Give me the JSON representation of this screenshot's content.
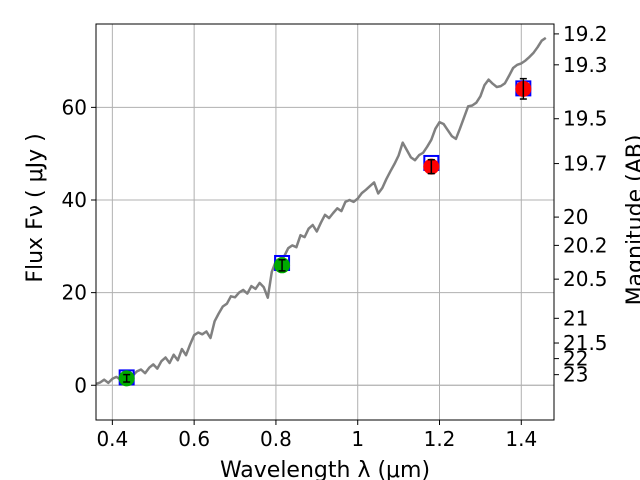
{
  "chart_data": {
    "type": "line",
    "xlabel": "Wavelength  λ (μm)",
    "ylabel": "Flux  Fν  ( μJy )",
    "ylabel_right": "Magnitude (AB)",
    "xlim": [
      0.36,
      1.48
    ],
    "ylim": [
      -7.5,
      78
    ],
    "grid": true,
    "x_ticks": [
      {
        "value": 0.4,
        "label": "0.4"
      },
      {
        "value": 0.6,
        "label": "0.6"
      },
      {
        "value": 0.8,
        "label": "0.8"
      },
      {
        "value": 1.0,
        "label": "1"
      },
      {
        "value": 1.2,
        "label": "1.2"
      },
      {
        "value": 1.4,
        "label": "1.4"
      }
    ],
    "y_ticks": [
      {
        "value": 0,
        "label": "0"
      },
      {
        "value": 20,
        "label": "20"
      },
      {
        "value": 40,
        "label": "40"
      },
      {
        "value": 60,
        "label": "60"
      }
    ],
    "mag_ticks": [
      {
        "value": 19.2,
        "label": "19.2"
      },
      {
        "value": 19.3,
        "label": "19.3"
      },
      {
        "value": 19.5,
        "label": "19.5"
      },
      {
        "value": 19.7,
        "label": "19.7"
      },
      {
        "value": 20,
        "label": "20"
      },
      {
        "value": 20.2,
        "label": "20.2"
      },
      {
        "value": 20.5,
        "label": "20.5"
      },
      {
        "value": 21,
        "label": "21"
      },
      {
        "value": 21.5,
        "label": "21.5"
      },
      {
        "value": 22,
        "label": "22"
      },
      {
        "value": 23,
        "label": "23"
      }
    ],
    "spectrum": {
      "color": "#808080",
      "x": [
        0.36,
        0.37,
        0.38,
        0.39,
        0.4,
        0.41,
        0.42,
        0.43,
        0.44,
        0.45,
        0.46,
        0.47,
        0.48,
        0.49,
        0.5,
        0.51,
        0.52,
        0.53,
        0.54,
        0.55,
        0.56,
        0.57,
        0.58,
        0.59,
        0.6,
        0.61,
        0.62,
        0.63,
        0.64,
        0.65,
        0.66,
        0.67,
        0.68,
        0.69,
        0.7,
        0.71,
        0.72,
        0.73,
        0.74,
        0.75,
        0.76,
        0.77,
        0.78,
        0.79,
        0.8,
        0.81,
        0.82,
        0.83,
        0.84,
        0.85,
        0.86,
        0.87,
        0.88,
        0.89,
        0.9,
        0.91,
        0.92,
        0.93,
        0.94,
        0.95,
        0.96,
        0.97,
        0.98,
        0.99,
        1.0,
        1.01,
        1.02,
        1.03,
        1.04,
        1.05,
        1.06,
        1.07,
        1.08,
        1.09,
        1.1,
        1.11,
        1.12,
        1.13,
        1.14,
        1.15,
        1.16,
        1.17,
        1.18,
        1.19,
        1.2,
        1.21,
        1.22,
        1.23,
        1.24,
        1.25,
        1.26,
        1.27,
        1.28,
        1.29,
        1.3,
        1.31,
        1.32,
        1.33,
        1.34,
        1.35,
        1.36,
        1.37,
        1.38,
        1.39,
        1.4,
        1.41,
        1.42,
        1.43,
        1.44,
        1.45,
        1.46
      ],
      "y": [
        0.3,
        0.6,
        1.2,
        0.5,
        1.4,
        1.8,
        1.2,
        2.2,
        2.8,
        2.1,
        3.0,
        3.4,
        2.6,
        3.8,
        4.5,
        3.6,
        5.2,
        6.0,
        4.8,
        6.6,
        5.4,
        7.8,
        6.5,
        8.8,
        10.8,
        11.4,
        11.0,
        11.6,
        10.2,
        13.8,
        15.5,
        17.0,
        17.6,
        19.2,
        19.0,
        20.0,
        20.6,
        19.8,
        21.4,
        20.8,
        22.1,
        21.2,
        18.9,
        24.5,
        26.8,
        27.4,
        27.8,
        29.6,
        30.2,
        29.8,
        32.4,
        32.0,
        33.8,
        34.6,
        33.2,
        35.1,
        36.8,
        36.1,
        37.2,
        38.2,
        37.6,
        39.6,
        40.0,
        39.6,
        40.3,
        41.5,
        42.2,
        43.0,
        43.8,
        41.4,
        42.6,
        44.5,
        46.2,
        47.8,
        49.6,
        52.4,
        50.8,
        49.2,
        48.6,
        49.7,
        50.2,
        51.5,
        53.0,
        55.4,
        56.8,
        56.4,
        55.1,
        53.8,
        53.2,
        55.4,
        57.8,
        60.2,
        60.4,
        61.0,
        62.4,
        64.8,
        66.0,
        65.1,
        64.4,
        64.6,
        65.2,
        66.8,
        68.5,
        69.2,
        69.5,
        70.1,
        70.9,
        71.8,
        73.0,
        74.4,
        75.0
      ]
    },
    "photometry": [
      {
        "x": 0.435,
        "y": 1.5,
        "model_y": 1.7,
        "err": 0.8,
        "color": "#00aa00"
      },
      {
        "x": 0.815,
        "y": 25.9,
        "model_y": 26.4,
        "err": 1.2,
        "color": "#00aa00"
      },
      {
        "x": 1.18,
        "y": 47.2,
        "model_y": 48.0,
        "err": 1.5,
        "color": "#ff0000"
      },
      {
        "x": 1.405,
        "y": 64.0,
        "model_y": 64.1,
        "err": 2.2,
        "color": "#ff0000"
      }
    ],
    "model_marker_color": "#0000ff"
  }
}
